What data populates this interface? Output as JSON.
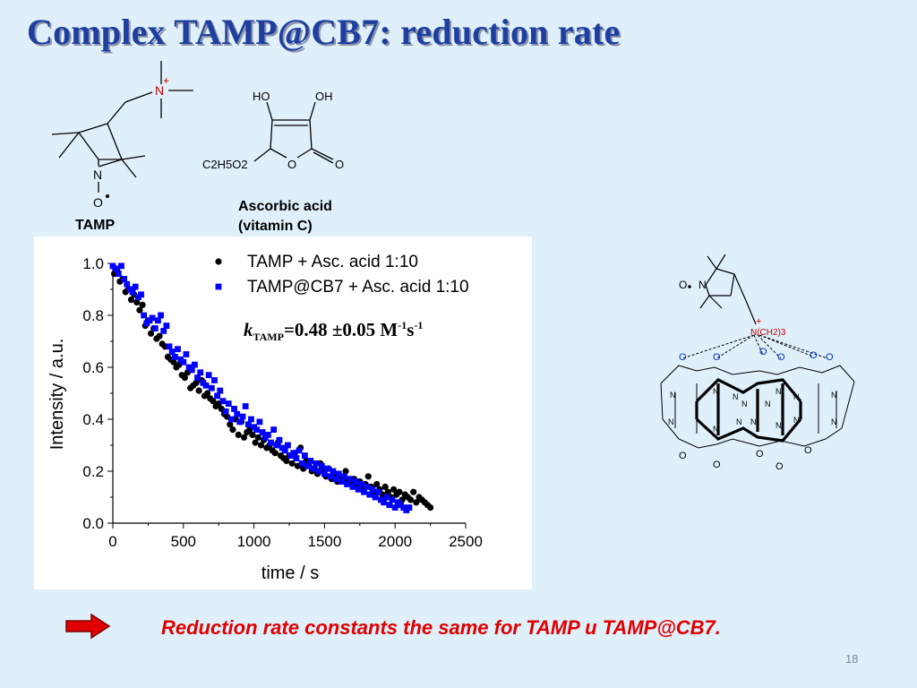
{
  "title": "Complex TAMP@CB7: reduction rate",
  "structures": {
    "tamp_label": "TAMP",
    "ascorbic_label_line1": "Ascorbic acid",
    "ascorbic_label_line2": "(vitamin C)",
    "ascorbic_atoms": {
      "ho": "HO",
      "oh": "OH",
      "o_ring": "O",
      "o_carbonyl": "O",
      "substituent": "C2H5O2"
    },
    "tamp_atoms": {
      "n_ring": "N",
      "o_radical": "O",
      "n_plus": "N",
      "plus": "+"
    },
    "complex_atoms": {
      "n_chain": "N(CH2)3",
      "plus": "+",
      "n_ring": "N",
      "o_radical": "O"
    }
  },
  "rate_constant": {
    "k": "k",
    "sub": "TAMP",
    "value": "=0.48 ±0.05 M",
    "sup1": "-1",
    "s": "s",
    "sup2": "-1"
  },
  "conclusion": "Reduction rate constants the same for TAMP u TAMP@CB7.",
  "slide_number": "18",
  "colors": {
    "title": "#1f3fa0",
    "series_black": "#000000",
    "series_blue": "#0000ff",
    "conclusion": "#e00000",
    "arrow": "#e00000"
  },
  "icons": {
    "arrow": "right-arrow-icon"
  },
  "chart_data": {
    "type": "scatter",
    "xlabel": "time / s",
    "ylabel": "Intensity / a.u.",
    "xlim": [
      0,
      2500
    ],
    "ylim": [
      0,
      1.0
    ],
    "xticks": [
      "0",
      "500",
      "1000",
      "1500",
      "2000",
      "2500"
    ],
    "yticks": [
      "0.0",
      "0.2",
      "0.4",
      "0.6",
      "0.8",
      "1.0"
    ],
    "legend_position": "top-right",
    "series": [
      {
        "name": "TAMP + Asc. acid 1:10",
        "marker": "circle",
        "color": "#000000",
        "x": [
          10,
          30,
          50,
          70,
          90,
          110,
          130,
          150,
          170,
          190,
          210,
          230,
          250,
          270,
          290,
          310,
          330,
          350,
          370,
          390,
          410,
          430,
          450,
          470,
          490,
          510,
          530,
          550,
          570,
          590,
          610,
          630,
          650,
          670,
          690,
          710,
          730,
          750,
          770,
          790,
          810,
          830,
          850,
          870,
          890,
          910,
          930,
          950,
          970,
          990,
          1010,
          1030,
          1050,
          1070,
          1090,
          1110,
          1130,
          1150,
          1170,
          1190,
          1210,
          1230,
          1250,
          1270,
          1290,
          1310,
          1330,
          1350,
          1370,
          1390,
          1410,
          1430,
          1450,
          1470,
          1490,
          1510,
          1530,
          1550,
          1570,
          1590,
          1610,
          1630,
          1650,
          1670,
          1690,
          1710,
          1730,
          1750,
          1770,
          1790,
          1810,
          1830,
          1850,
          1870,
          1890,
          1910,
          1930,
          1950,
          1970,
          1990,
          2010,
          2030,
          2050,
          2070,
          2090,
          2110,
          2130,
          2150,
          2170,
          2190,
          2210,
          2230,
          2250
        ],
        "y": [
          0.96,
          0.97,
          0.93,
          0.94,
          0.89,
          0.9,
          0.86,
          0.88,
          0.85,
          0.82,
          0.84,
          0.76,
          0.78,
          0.73,
          0.75,
          0.71,
          0.72,
          0.69,
          0.68,
          0.64,
          0.63,
          0.62,
          0.6,
          0.61,
          0.57,
          0.56,
          0.58,
          0.52,
          0.53,
          0.54,
          0.51,
          0.55,
          0.49,
          0.5,
          0.48,
          0.47,
          0.45,
          0.46,
          0.44,
          0.42,
          0.41,
          0.38,
          0.36,
          0.4,
          0.34,
          0.39,
          0.33,
          0.35,
          0.36,
          0.34,
          0.31,
          0.33,
          0.3,
          0.32,
          0.29,
          0.3,
          0.28,
          0.27,
          0.31,
          0.26,
          0.25,
          0.24,
          0.26,
          0.23,
          0.27,
          0.22,
          0.29,
          0.21,
          0.24,
          0.22,
          0.2,
          0.21,
          0.19,
          0.23,
          0.2,
          0.18,
          0.21,
          0.17,
          0.19,
          0.16,
          0.18,
          0.17,
          0.2,
          0.16,
          0.15,
          0.17,
          0.14,
          0.16,
          0.13,
          0.15,
          0.18,
          0.14,
          0.12,
          0.15,
          0.13,
          0.11,
          0.14,
          0.12,
          0.1,
          0.13,
          0.11,
          0.12,
          0.09,
          0.11,
          0.1,
          0.09,
          0.12,
          0.08,
          0.1,
          0.09,
          0.08,
          0.07,
          0.06
        ]
      },
      {
        "name": "TAMP@CB7 + Asc. acid 1:10",
        "marker": "square",
        "color": "#0000ff",
        "x": [
          0,
          20,
          40,
          60,
          80,
          100,
          120,
          140,
          160,
          180,
          200,
          220,
          240,
          260,
          280,
          300,
          320,
          340,
          360,
          380,
          400,
          420,
          440,
          460,
          480,
          500,
          520,
          540,
          560,
          580,
          600,
          620,
          640,
          660,
          680,
          700,
          720,
          740,
          760,
          780,
          800,
          820,
          840,
          860,
          880,
          900,
          920,
          940,
          960,
          980,
          1000,
          1020,
          1040,
          1060,
          1080,
          1100,
          1120,
          1140,
          1160,
          1180,
          1200,
          1220,
          1240,
          1260,
          1280,
          1300,
          1320,
          1340,
          1360,
          1380,
          1400,
          1420,
          1440,
          1460,
          1480,
          1500,
          1520,
          1540,
          1560,
          1580,
          1600,
          1620,
          1640,
          1660,
          1680,
          1700,
          1720,
          1740,
          1760,
          1780,
          1800,
          1820,
          1840,
          1860,
          1880,
          1900,
          1920,
          1940,
          1960,
          1980,
          2000,
          2020,
          2040,
          2060,
          2080,
          2100
        ],
        "y": [
          0.99,
          0.98,
          0.96,
          0.99,
          0.94,
          0.92,
          0.9,
          0.89,
          0.91,
          0.87,
          0.88,
          0.8,
          0.77,
          0.78,
          0.79,
          0.75,
          0.78,
          0.8,
          0.74,
          0.76,
          0.68,
          0.66,
          0.64,
          0.67,
          0.63,
          0.62,
          0.65,
          0.6,
          0.59,
          0.61,
          0.56,
          0.58,
          0.54,
          0.53,
          0.57,
          0.52,
          0.55,
          0.49,
          0.51,
          0.47,
          0.43,
          0.46,
          0.4,
          0.44,
          0.42,
          0.39,
          0.41,
          0.45,
          0.38,
          0.4,
          0.37,
          0.36,
          0.39,
          0.35,
          0.33,
          0.34,
          0.31,
          0.36,
          0.3,
          0.32,
          0.29,
          0.28,
          0.3,
          0.26,
          0.27,
          0.25,
          0.28,
          0.23,
          0.26,
          0.22,
          0.24,
          0.21,
          0.23,
          0.2,
          0.22,
          0.19,
          0.21,
          0.18,
          0.2,
          0.17,
          0.19,
          0.16,
          0.18,
          0.15,
          0.17,
          0.14,
          0.16,
          0.13,
          0.15,
          0.12,
          0.14,
          0.11,
          0.13,
          0.1,
          0.12,
          0.09,
          0.08,
          0.1,
          0.07,
          0.09,
          0.06,
          0.08,
          0.07,
          0.06,
          0.05,
          0.06
        ]
      }
    ]
  }
}
